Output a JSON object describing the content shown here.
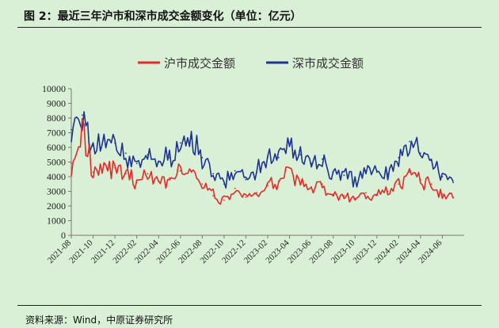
{
  "figure": {
    "title": "图 2：最近三年沪市和深市成交金额变化（单位：亿元）",
    "source": "资料来源：Wind，中原证券研究所"
  },
  "chart_data": {
    "type": "line",
    "xlabel": "",
    "ylabel": "",
    "ylim": [
      0,
      10000
    ],
    "yticks": [
      0,
      1000,
      2000,
      3000,
      4000,
      5000,
      6000,
      7000,
      8000,
      9000,
      10000
    ],
    "xlim": [
      "2021-08",
      "2024-08"
    ],
    "x_tick_labels": [
      "2021-08",
      "2021-10",
      "2021-12",
      "2022-02",
      "2022-04",
      "2022-06",
      "2022-08",
      "2022-10",
      "2022-12",
      "2023-02",
      "2023-04",
      "2023-06",
      "2023-08",
      "2023-10",
      "2023-12",
      "2024-02",
      "2024-04",
      "2024-06"
    ],
    "legend_position": "top-center",
    "grid": false,
    "x": [
      "2021-08",
      "2021-09",
      "2021-10",
      "2021-11",
      "2021-12",
      "2022-01",
      "2022-02",
      "2022-03",
      "2022-04",
      "2022-05",
      "2022-06",
      "2022-07",
      "2022-08",
      "2022-09",
      "2022-10",
      "2022-11",
      "2022-12",
      "2023-01",
      "2023-02",
      "2023-03",
      "2023-04",
      "2023-05",
      "2023-06",
      "2023-07",
      "2023-08",
      "2023-09",
      "2023-10",
      "2023-11",
      "2023-12",
      "2024-01",
      "2024-02",
      "2024-03",
      "2024-04",
      "2024-05",
      "2024-06",
      "2024-07"
    ],
    "series": [
      {
        "name": "沪市成交金额",
        "color": "#e32b27",
        "values": [
          4900,
          7200,
          4300,
          4800,
          4600,
          4200,
          3600,
          4200,
          3700,
          3900,
          4400,
          4300,
          3500,
          2700,
          2400,
          3200,
          2600,
          2900,
          3400,
          3700,
          4600,
          3500,
          3300,
          3500,
          2800,
          2700,
          2500,
          2900,
          2800,
          3000,
          3500,
          4300,
          3800,
          3500,
          2800,
          2600
        ]
      },
      {
        "name": "深市成交金额",
        "color": "#1c3391",
        "values": [
          7200,
          8200,
          6100,
          6600,
          6300,
          5600,
          4900,
          5500,
          5000,
          5300,
          6300,
          6600,
          5300,
          4200,
          3500,
          4400,
          3800,
          4300,
          5300,
          5300,
          6100,
          5500,
          4900,
          5200,
          4300,
          4100,
          3800,
          4400,
          4300,
          4200,
          5300,
          6400,
          5600,
          5100,
          4000,
          3600
        ]
      }
    ]
  }
}
